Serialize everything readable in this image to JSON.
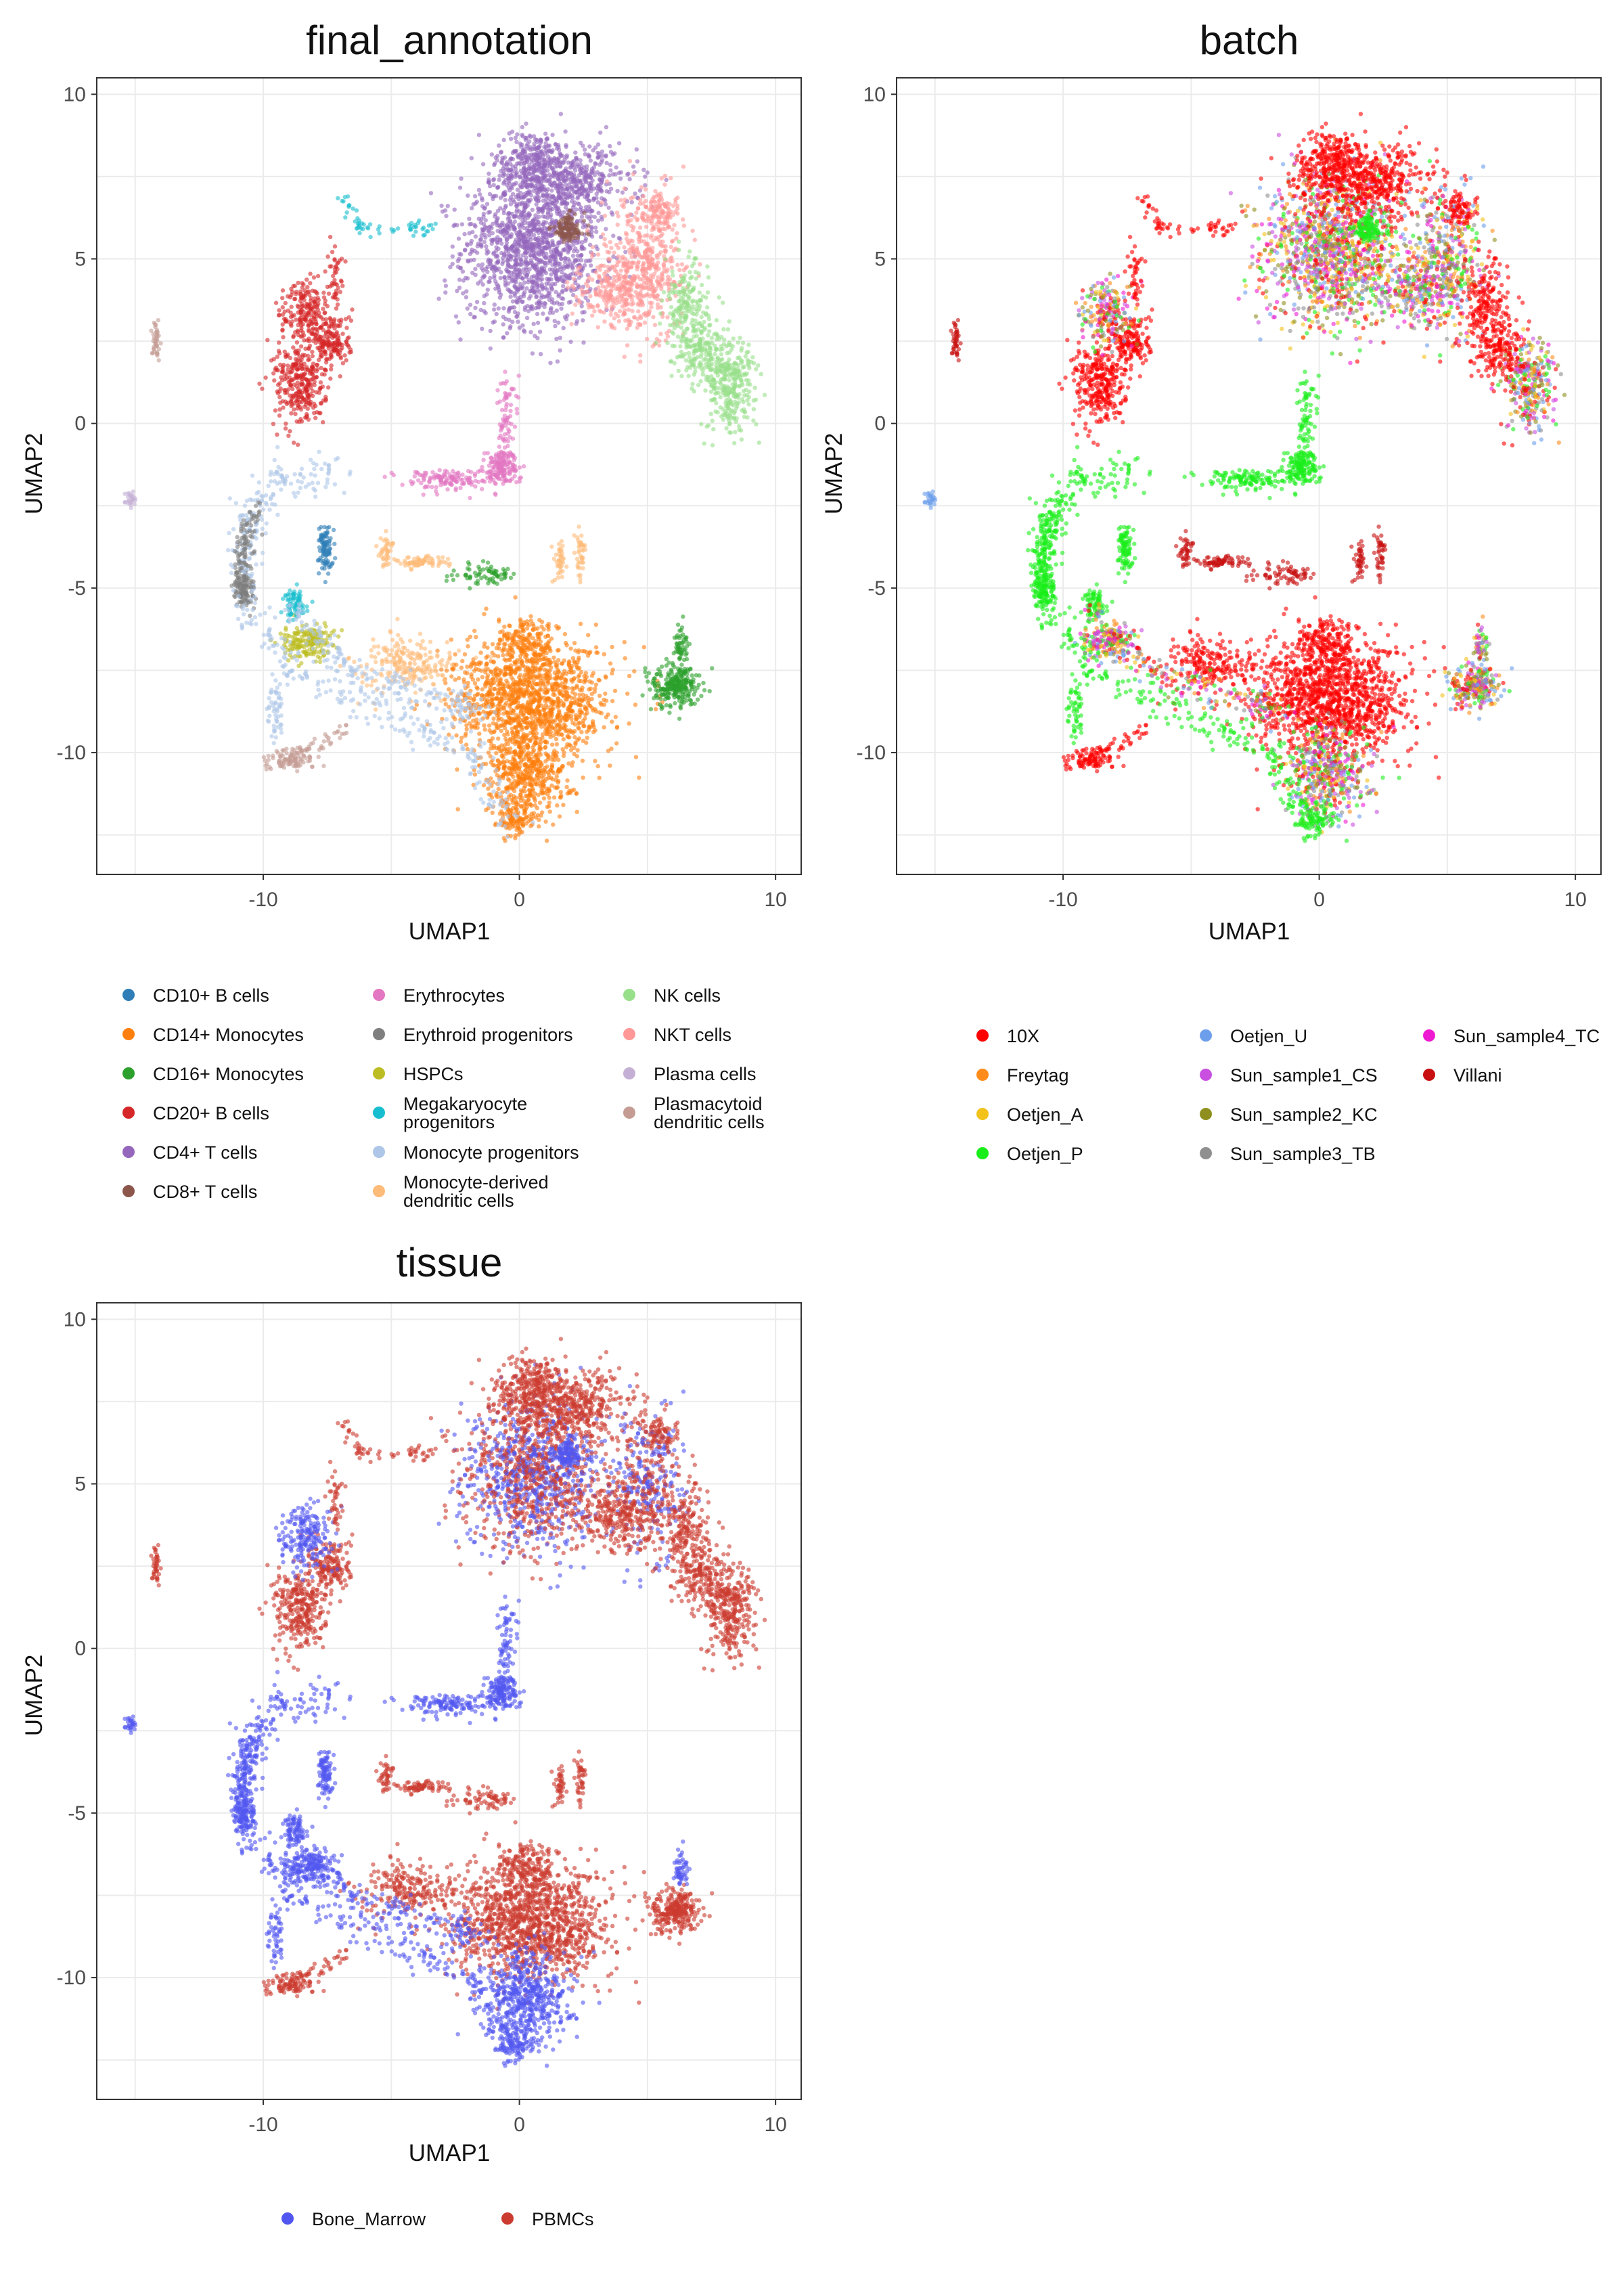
{
  "chart_data": [
    {
      "type": "scatter",
      "title": "final_annotation",
      "xlabel": "UMAP1",
      "ylabel": "UMAP2",
      "xlim": [
        -16.5,
        11.0
      ],
      "ylim": [
        -13.7,
        10.5
      ],
      "xticks": [
        -10,
        0,
        10
      ],
      "yticks": [
        10,
        5,
        0,
        -5,
        -10
      ],
      "xtick_labels": [
        "-10",
        "0",
        "10"
      ],
      "ytick_labels": [
        "10",
        "5",
        "0",
        "-5",
        "-10"
      ],
      "grid": true,
      "legend_position": "bottom",
      "legend_columns": 3,
      "legend": [
        {
          "label": "CD10+ B cells",
          "color": "#2f7eb7"
        },
        {
          "label": "CD14+ Monocytes",
          "color": "#ff7f0e"
        },
        {
          "label": "CD16+ Monocytes",
          "color": "#2ca02c"
        },
        {
          "label": "CD20+ B cells",
          "color": "#d62728"
        },
        {
          "label": "CD4+ T cells",
          "color": "#9467bd"
        },
        {
          "label": "CD8+ T cells",
          "color": "#8c564b"
        },
        {
          "label": "Erythrocytes",
          "color": "#e377c2"
        },
        {
          "label": "Erythroid progenitors",
          "color": "#7f7f7f"
        },
        {
          "label": "HSPCs",
          "color": "#bcbd22"
        },
        {
          "label": "Megakaryocyte progenitors",
          "color": "#17becf"
        },
        {
          "label": "Monocyte progenitors",
          "color": "#aec7e8"
        },
        {
          "label": "Monocyte-derived dendritic cells",
          "color": "#ffbb78"
        },
        {
          "label": "NK cells",
          "color": "#98df8a"
        },
        {
          "label": "NKT cells",
          "color": "#ff9896"
        },
        {
          "label": "Plasma cells",
          "color": "#c5b0d5"
        },
        {
          "label": "Plasmacytoid dendritic cells",
          "color": "#c49c94"
        }
      ]
    },
    {
      "type": "scatter",
      "title": "batch",
      "xlabel": "UMAP1",
      "ylabel": "UMAP2",
      "xlim": [
        -16.5,
        11.0
      ],
      "ylim": [
        -13.7,
        10.5
      ],
      "xticks": [
        -10,
        0,
        10
      ],
      "yticks": [
        10,
        5,
        0,
        -5,
        -10
      ],
      "xtick_labels": [
        "-10",
        "0",
        "10"
      ],
      "ytick_labels": [
        "10",
        "5",
        "0",
        "-5",
        "-10"
      ],
      "grid": true,
      "legend_position": "bottom",
      "legend_columns": 3,
      "legend": [
        {
          "label": "10X",
          "color": "#ff0000"
        },
        {
          "label": "Freytag",
          "color": "#ff8c1a"
        },
        {
          "label": "Oetjen_A",
          "color": "#f2c21a"
        },
        {
          "label": "Oetjen_P",
          "color": "#1aee1a"
        },
        {
          "label": "Oetjen_U",
          "color": "#6d9eeb"
        },
        {
          "label": "Sun_sample1_CS",
          "color": "#c94fe0"
        },
        {
          "label": "Sun_sample2_KC",
          "color": "#8f8f1f"
        },
        {
          "label": "Sun_sample3_TB",
          "color": "#8f8f8f"
        },
        {
          "label": "Sun_sample4_TC",
          "color": "#ee1ad2"
        },
        {
          "label": "Villani",
          "color": "#c81010"
        }
      ]
    },
    {
      "type": "scatter",
      "title": "tissue",
      "xlabel": "UMAP1",
      "ylabel": "UMAP2",
      "xlim": [
        -16.5,
        11.0
      ],
      "ylim": [
        -13.7,
        10.5
      ],
      "xticks": [
        -10,
        0,
        10
      ],
      "yticks": [
        10,
        5,
        0,
        -5,
        -10
      ],
      "xtick_labels": [
        "-10",
        "0",
        "10"
      ],
      "ytick_labels": [
        "10",
        "5",
        "0",
        "-5",
        "-10"
      ],
      "grid": true,
      "legend_position": "bottom",
      "legend_columns": 2,
      "legend": [
        {
          "label": "Bone_Marrow",
          "color": "#5256f0"
        },
        {
          "label": "PBMCs",
          "color": "#cc3b2f"
        }
      ]
    }
  ],
  "clusters": [
    {
      "cx": 0.5,
      "cy": 5.3,
      "rx": 2.5,
      "ry": 2.1,
      "ann": "CD4+ T cells",
      "batch": "mix",
      "tissue": "mix",
      "n": 1300
    },
    {
      "cx": 0.6,
      "cy": 7.8,
      "rx": 1.4,
      "ry": 1.0,
      "ann": "CD4+ T cells",
      "batch": "10X",
      "tissue": "PBMCs",
      "n": 380
    },
    {
      "cx": 2.4,
      "cy": 7.3,
      "rx": 2.0,
      "ry": 1.0,
      "ann": "CD4+ T cells",
      "batch": "10X",
      "tissue": "PBMCs",
      "n": 320
    },
    {
      "cx": 1.9,
      "cy": 5.9,
      "rx": 0.6,
      "ry": 0.4,
      "ann": "CD8+ T cells",
      "batch": "Oetjen_P",
      "tissue": "Bone_Marrow",
      "n": 110
    },
    {
      "cx": 5.0,
      "cy": 5.0,
      "rx": 1.4,
      "ry": 1.8,
      "ann": "NKT cells",
      "batch": "mix",
      "tissue": "mix",
      "n": 420
    },
    {
      "cx": 3.9,
      "cy": 4.0,
      "rx": 1.5,
      "ry": 1.0,
      "ann": "NKT cells",
      "batch": "mix",
      "tissue": "PBMCs",
      "n": 260
    },
    {
      "cx": 5.5,
      "cy": 6.5,
      "rx": 0.6,
      "ry": 0.4,
      "ann": "NKT cells",
      "batch": "10X",
      "tissue": "PBMCs",
      "n": 70
    },
    {
      "cx": 6.5,
      "cy": 3.4,
      "rx": 0.8,
      "ry": 1.4,
      "ann": "NK cells",
      "batch": "10X",
      "tissue": "PBMCs",
      "n": 200
    },
    {
      "cx": 8.2,
      "cy": 1.2,
      "rx": 0.9,
      "ry": 1.3,
      "ann": "NK cells",
      "batch": "mix",
      "tissue": "PBMCs",
      "n": 300
    },
    {
      "cx": 7.2,
      "cy": 2.2,
      "rx": 0.8,
      "ry": 0.8,
      "ann": "NK cells",
      "batch": "10X",
      "tissue": "PBMCs",
      "n": 140
    },
    {
      "cx": -8.6,
      "cy": 1.2,
      "rx": 0.9,
      "ry": 1.2,
      "ann": "CD20+ B cells",
      "batch": "10X",
      "tissue": "PBMCs",
      "n": 300
    },
    {
      "cx": -7.3,
      "cy": 2.5,
      "rx": 0.7,
      "ry": 0.8,
      "ann": "CD20+ B cells",
      "batch": "10X",
      "tissue": "PBMCs",
      "n": 160
    },
    {
      "cx": -8.3,
      "cy": 3.4,
      "rx": 0.9,
      "ry": 0.9,
      "ann": "CD20+ B cells",
      "batch": "mix",
      "tissue": "Bone_Marrow",
      "n": 200
    },
    {
      "cx": -7.2,
      "cy": 4.6,
      "rx": 0.25,
      "ry": 0.8,
      "ann": "CD20+ B cells",
      "batch": "10X",
      "tissue": "PBMCs",
      "n": 40
    },
    {
      "cx": -14.2,
      "cy": 2.5,
      "rx": 0.15,
      "ry": 0.5,
      "ann": "Plasmacytoid dendritic cells",
      "batch": "Villani",
      "tissue": "PBMCs",
      "n": 40
    },
    {
      "cx": -15.2,
      "cy": -2.2,
      "rx": 0.2,
      "ry": 0.3,
      "ann": "Plasma cells",
      "batch": "Oetjen_U",
      "tissue": "Bone_Marrow",
      "n": 25
    },
    {
      "cx": -0.7,
      "cy": -1.3,
      "rx": 0.6,
      "ry": 0.5,
      "ann": "Erythrocytes",
      "batch": "Oetjen_P",
      "tissue": "Bone_Marrow",
      "n": 150
    },
    {
      "cx": -2.8,
      "cy": -1.7,
      "rx": 1.6,
      "ry": 0.3,
      "ann": "Erythrocytes",
      "batch": "Oetjen_P",
      "tissue": "Bone_Marrow",
      "n": 130
    },
    {
      "cx": -0.5,
      "cy": 0.2,
      "rx": 0.4,
      "ry": 1.3,
      "ann": "Erythrocytes",
      "batch": "Oetjen_P",
      "tissue": "Bone_Marrow",
      "n": 70
    },
    {
      "cx": 0.5,
      "cy": -8.4,
      "rx": 2.8,
      "ry": 1.5,
      "ann": "CD14+ Monocytes",
      "batch": "10X",
      "tissue": "PBMCs",
      "n": 1200
    },
    {
      "cx": 0.3,
      "cy": -10.6,
      "rx": 1.5,
      "ry": 1.3,
      "ann": "CD14+ Monocytes",
      "batch": "mix",
      "tissue": "Bone_Marrow",
      "n": 520
    },
    {
      "cx": 0.3,
      "cy": -6.7,
      "rx": 1.1,
      "ry": 0.7,
      "ann": "CD14+ Monocytes",
      "batch": "10X",
      "tissue": "PBMCs",
      "n": 200
    },
    {
      "cx": -0.2,
      "cy": -12.0,
      "rx": 0.7,
      "ry": 0.5,
      "ann": "CD14+ Monocytes",
      "batch": "Oetjen_P",
      "tissue": "Bone_Marrow",
      "n": 90
    },
    {
      "cx": 6.1,
      "cy": -8.0,
      "rx": 0.8,
      "ry": 0.6,
      "ann": "CD16+ Monocytes",
      "batch": "mix",
      "tissue": "PBMCs",
      "n": 260
    },
    {
      "cx": 6.3,
      "cy": -6.8,
      "rx": 0.25,
      "ry": 0.6,
      "ann": "CD16+ Monocytes",
      "batch": "mix",
      "tissue": "Bone_Marrow",
      "n": 50
    },
    {
      "cx": -4.5,
      "cy": -7.3,
      "rx": 1.6,
      "ry": 0.8,
      "ann": "Monocyte-derived dendritic cells",
      "batch": "10X",
      "tissue": "PBMCs",
      "n": 210
    },
    {
      "cx": -7.6,
      "cy": -3.7,
      "rx": 0.25,
      "ry": 0.7,
      "ann": "CD10+ B cells",
      "batch": "Oetjen_P",
      "tissue": "Bone_Marrow",
      "n": 90
    },
    {
      "cx": -9.6,
      "cy": -8.7,
      "rx": 0.3,
      "ry": 0.8,
      "ann": "Monocyte progenitors",
      "batch": "Oetjen_P",
      "tissue": "Bone_Marrow",
      "n": 50
    },
    {
      "cx": -8.2,
      "cy": -6.6,
      "rx": 0.9,
      "ry": 0.5,
      "ann": "HSPCs",
      "batch": "mix",
      "tissue": "Bone_Marrow",
      "n": 180
    },
    {
      "cx": -8.8,
      "cy": -5.5,
      "rx": 0.4,
      "ry": 0.4,
      "ann": "Megakaryocyte progenitors",
      "batch": "Oetjen_P",
      "tissue": "Bone_Marrow",
      "n": 70
    },
    {
      "cx": -10.8,
      "cy": -5.0,
      "rx": 0.4,
      "ry": 0.5,
      "ann": "Erythroid progenitors",
      "batch": "Oetjen_P",
      "tissue": "Bone_Marrow",
      "n": 110
    },
    {
      "cx": -3.8,
      "cy": -4.2,
      "rx": 0.9,
      "ry": 0.2,
      "ann": "Monocyte-derived dendritic cells",
      "batch": "Villani",
      "tissue": "PBMCs",
      "n": 70
    },
    {
      "cx": -5.2,
      "cy": -3.9,
      "rx": 0.3,
      "ry": 0.4,
      "ann": "Monocyte-derived dendritic cells",
      "batch": "Villani",
      "tissue": "PBMCs",
      "n": 40
    },
    {
      "cx": -1.5,
      "cy": -4.6,
      "rx": 1.0,
      "ry": 0.3,
      "ann": "CD16+ Monocytes",
      "batch": "Villani",
      "tissue": "PBMCs",
      "n": 70
    },
    {
      "cx": 1.6,
      "cy": -4.2,
      "rx": 0.2,
      "ry": 0.6,
      "ann": "Monocyte-derived dendritic cells",
      "batch": "Villani",
      "tissue": "PBMCs",
      "n": 40
    },
    {
      "cx": 2.4,
      "cy": -3.9,
      "rx": 0.2,
      "ry": 0.6,
      "ann": "Monocyte-derived dendritic cells",
      "batch": "Villani",
      "tissue": "PBMCs",
      "n": 40
    },
    {
      "cx": -8.8,
      "cy": -10.2,
      "rx": 0.8,
      "ry": 0.3,
      "ann": "Plasmacytoid dendritic cells",
      "batch": "10X",
      "tissue": "PBMCs",
      "n": 70
    }
  ],
  "trails": [
    {
      "points": [
        [
          -7.0,
          -1.6
        ],
        [
          -9.2,
          -1.6
        ],
        [
          -10.5,
          -2.8
        ],
        [
          -10.8,
          -4.0
        ],
        [
          -10.3,
          -6.0
        ],
        [
          -8.5,
          -7.8
        ],
        [
          -5.0,
          -8.8
        ],
        [
          -2.0,
          -10.0
        ],
        [
          -0.3,
          -12.0
        ]
      ],
      "ann": "Monocyte progenitors",
      "batch": "Oetjen_P",
      "tissue": "Bone_Marrow",
      "n": 420,
      "spread": 0.3
    },
    {
      "points": [
        [
          -9.0,
          -5.5
        ],
        [
          -7.0,
          -7.3
        ],
        [
          -4.0,
          -8.2
        ],
        [
          -1.2,
          -8.8
        ]
      ],
      "ann": "Monocyte progenitors",
      "batch": "mix",
      "tissue": "Bone_Marrow",
      "n": 200,
      "spread": 0.25
    },
    {
      "points": [
        [
          -10.2,
          -2.6
        ],
        [
          -10.8,
          -3.8
        ],
        [
          -10.6,
          -5.4
        ]
      ],
      "ann": "Erythroid progenitors",
      "batch": "Oetjen_P",
      "tissue": "Bone_Marrow",
      "n": 110,
      "spread": 0.18
    },
    {
      "points": [
        [
          -7.0,
          6.9
        ],
        [
          -6.0,
          5.7
        ],
        [
          -4.5,
          5.9
        ],
        [
          -3.5,
          6.0
        ]
      ],
      "ann": "Megakaryocyte progenitors",
      "batch": "10X",
      "tissue": "PBMCs",
      "n": 60,
      "spread": 0.12
    },
    {
      "points": [
        [
          -10.2,
          -10.3
        ],
        [
          -9.0,
          -10.1
        ],
        [
          -7.8,
          -9.8
        ],
        [
          -6.6,
          -9.3
        ]
      ],
      "ann": "Plasmacytoid dendritic cells",
      "batch": "10X",
      "tissue": "PBMCs",
      "n": 60,
      "spread": 0.15
    }
  ]
}
